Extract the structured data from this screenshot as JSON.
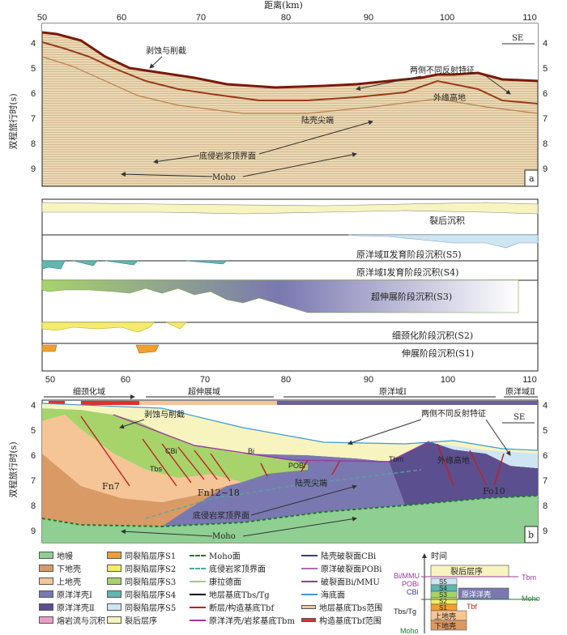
{
  "x_axis": {
    "title": "距离(km)",
    "ticks_top": [
      "50",
      "60",
      "70",
      "80",
      "90",
      "100",
      "110"
    ],
    "ticks_mid": [
      "50",
      "60",
      "70",
      "80",
      "90",
      "100",
      "110"
    ]
  },
  "y_axis": {
    "title": "双程旅行时(s)",
    "ticks_a": [
      "4",
      "5",
      "6",
      "7",
      "8",
      "9"
    ],
    "ticks_b": [
      "4",
      "5",
      "6",
      "7",
      "8",
      "9"
    ]
  },
  "panel_a": {
    "letter": "a",
    "direction": "SE",
    "annotations": {
      "erosion": "剥蚀与削截",
      "reflection": "两侧不同反射特征",
      "outer_high": "外缘高地",
      "tip": "陆壳尖端",
      "magma_top": "底侵岩浆顶界面",
      "moho": "Moho"
    }
  },
  "strata": {
    "post_rift": "裂后沉积",
    "s5": "原洋域Ⅱ发育阶段沉积(S5)",
    "s4": "原洋域Ⅰ发育阶段沉积(S4)",
    "s3": "超伸展阶段沉积(S3)",
    "s2": "细颈化阶段沉积(S2)",
    "s1": "伸展阶段沉积(S1)"
  },
  "domains": {
    "necking": "细颈化域",
    "hyper": "超伸展域",
    "proto1": "原洋域Ⅰ",
    "proto2": "原洋域Ⅱ"
  },
  "panel_b": {
    "letter": "b",
    "direction": "SE",
    "annotations": {
      "erosion": "剥蚀与削截",
      "reflection": "两侧不同反射特征",
      "cbi": "CBi",
      "bi": "Bi",
      "pobi": "POBi",
      "tbm": "Tbm",
      "tbs": "Tbs",
      "outer_high": "外缘高地",
      "tip": "陆壳尖端",
      "magma_top": "底侵岩浆顶界面",
      "moho": "Moho",
      "fn7": "Fn7",
      "fn12": "Fn12~18",
      "fo10": "Fo10"
    }
  },
  "legend": {
    "col1": [
      "地幔",
      "下地壳",
      "上地壳",
      "原洋洋壳Ⅰ",
      "原洋洋壳Ⅱ",
      "熔岩流与沉积"
    ],
    "col2": [
      "同裂陷层序S1",
      "同裂陷层序S2",
      "同裂陷层序S3",
      "同裂陷层序S4",
      "同裂陷层序S5",
      "裂后层序"
    ],
    "col3": [
      "Moho面",
      "底侵岩浆顶界面",
      "康拉德面",
      "地层基底Tbs/Tg",
      "断层/构造基底Tbf",
      "原洋洋壳/岩浆基底Tbm"
    ],
    "col4": [
      "陆壳破裂面CBi",
      "原洋破裂面POBi",
      "破裂面Bi/MMU",
      "海底面",
      "地层基底Tbs范围",
      "构造基底Tbf范围"
    ]
  },
  "colors": {
    "mantle": "#8fcf92",
    "lower_crust": "#d99a66",
    "upper_crust": "#f6c596",
    "oceanic1": "#7a78b0",
    "oceanic2": "#5b4f8f",
    "lava": "#e6a0c8",
    "s1": "#f0a030",
    "s2": "#f4ec6a",
    "s3": "#a7d36b",
    "s4": "#5fb7b0",
    "s5": "#cfe5f2",
    "post": "#f8f4c0"
  },
  "time_chart": {
    "axis": "时间",
    "post": "裂后层序",
    "s5": "S5",
    "s4": "S4",
    "s3": "S3",
    "s2": "S2",
    "s1": "S1",
    "upper": "上地壳",
    "lower": "下地壳",
    "bi": "Bi/MMU",
    "pobi": "POBi",
    "cbi": "CBi",
    "tbs": "Tbs/Tg",
    "moho": "Moho",
    "tbm": "Tbm",
    "tbf": "Tbf",
    "ocean": "原洋洋壳",
    "moho_r": "Moho"
  }
}
